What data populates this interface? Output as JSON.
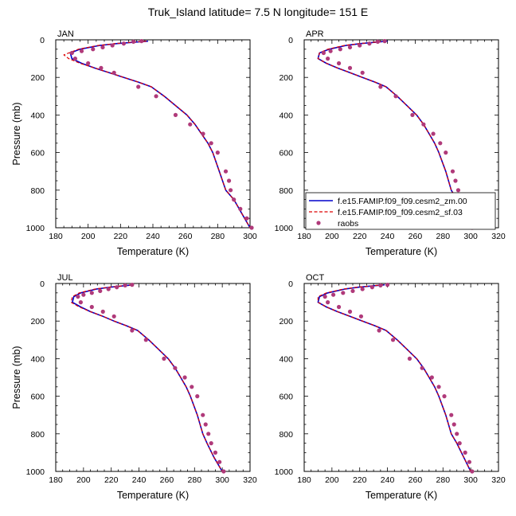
{
  "title": "Truk_Island  latitude= 7.5 N longitude= 151 E",
  "colors": {
    "model_zm": "#0000cc",
    "model_sf": "#dd0000",
    "raobs": "#b03a7a",
    "axis": "#000000"
  },
  "legend": {
    "entries": [
      {
        "key": "model_zm",
        "label": "f.e15.FAMIP.f09_f09.cesm2_zm.00",
        "style": "solid"
      },
      {
        "key": "model_sf",
        "label": "f.e15.FAMIP.f09_f09.cesm2_sf.03",
        "style": "dashed"
      },
      {
        "key": "raobs",
        "label": "raobs",
        "style": "marker"
      }
    ]
  },
  "chart_data": [
    {
      "type": "line",
      "panel": "JAN",
      "xlabel": "Temperature (K)",
      "ylabel": "Pressure (mb)",
      "xlim": [
        180,
        300
      ],
      "ylim": [
        0,
        1000
      ],
      "y_inverted": true,
      "xticks": [
        180,
        200,
        220,
        240,
        260,
        280,
        300
      ],
      "yticks": [
        0,
        200,
        400,
        600,
        800,
        1000
      ],
      "series": [
        {
          "key": "model_zm",
          "name": "f.e15.FAMIP.f09_f09.cesm2_zm.00",
          "x": [
            237,
            228,
            218,
            207,
            195,
            189,
            190,
            196,
            204,
            213,
            222,
            231,
            239,
            247,
            254,
            261,
            266,
            270,
            274,
            277,
            281,
            285,
            290,
            295,
            300
          ],
          "y": [
            7,
            13,
            20,
            30,
            50,
            70,
            100,
            125,
            150,
            175,
            200,
            225,
            250,
            300,
            350,
            400,
            450,
            500,
            550,
            600,
            700,
            800,
            850,
            925,
            1000
          ]
        },
        {
          "key": "model_sf",
          "name": "f.e15.FAMIP.f09_f09.cesm2_sf.03",
          "x": [
            236,
            227,
            217,
            206,
            194,
            185,
            188,
            195,
            204,
            213,
            222,
            231,
            239,
            247,
            254,
            261,
            266,
            270,
            274,
            277,
            281,
            285,
            290,
            295,
            300
          ],
          "y": [
            7,
            13,
            20,
            30,
            50,
            80,
            100,
            125,
            150,
            175,
            200,
            225,
            250,
            300,
            350,
            400,
            450,
            500,
            550,
            600,
            700,
            800,
            850,
            925,
            1000
          ]
        },
        {
          "key": "raobs",
          "name": "raobs",
          "x": [
            233,
            228,
            222,
            215,
            209,
            203,
            196,
            190,
            192,
            200,
            208,
            216,
            231,
            242,
            254,
            263,
            271,
            276,
            280,
            285,
            287,
            288,
            290,
            294,
            298,
            301
          ],
          "y": [
            7,
            10,
            20,
            30,
            40,
            50,
            60,
            70,
            100,
            125,
            150,
            175,
            250,
            300,
            400,
            450,
            500,
            550,
            600,
            700,
            750,
            800,
            850,
            900,
            950,
            1000
          ]
        }
      ]
    },
    {
      "type": "line",
      "panel": "APR",
      "xlabel": "Temperature (K)",
      "ylabel": "",
      "xlim": [
        180,
        320
      ],
      "ylim": [
        0,
        1000
      ],
      "y_inverted": true,
      "xticks": [
        180,
        200,
        220,
        240,
        260,
        280,
        300,
        320
      ],
      "yticks": [
        0,
        200,
        400,
        600,
        800,
        1000
      ],
      "series": [
        {
          "key": "model_zm",
          "name": "f.e15.FAMIP.f09_f09.cesm2_zm.00",
          "x": [
            240,
            231,
            221,
            210,
            198,
            191,
            190,
            196,
            204,
            213,
            222,
            231,
            239,
            247,
            254,
            261,
            266,
            270,
            274,
            277,
            282,
            286,
            290,
            296,
            301
          ],
          "y": [
            7,
            13,
            20,
            30,
            50,
            70,
            100,
            125,
            150,
            175,
            200,
            225,
            250,
            300,
            350,
            400,
            450,
            500,
            550,
            600,
            700,
            800,
            850,
            925,
            1000
          ]
        },
        {
          "key": "model_sf",
          "name": "f.e15.FAMIP.f09_f09.cesm2_sf.03",
          "x": [
            239,
            230,
            220,
            209,
            197,
            191,
            190,
            196,
            204,
            213,
            222,
            231,
            239,
            247,
            254,
            261,
            266,
            270,
            274,
            277,
            282,
            286,
            290,
            296,
            301
          ],
          "y": [
            7,
            13,
            20,
            30,
            50,
            70,
            100,
            125,
            150,
            175,
            200,
            225,
            250,
            300,
            350,
            400,
            450,
            500,
            550,
            600,
            700,
            800,
            850,
            925,
            1000
          ]
        },
        {
          "key": "raobs",
          "name": "raobs",
          "x": [
            238,
            233,
            227,
            220,
            213,
            206,
            199,
            194,
            197,
            205,
            213,
            222,
            235,
            246,
            258,
            266,
            273,
            278,
            282,
            287,
            289,
            291,
            293,
            296,
            299,
            301
          ],
          "y": [
            7,
            10,
            20,
            30,
            40,
            50,
            60,
            70,
            100,
            125,
            150,
            175,
            250,
            300,
            400,
            450,
            500,
            550,
            600,
            700,
            750,
            800,
            850,
            900,
            950,
            1000
          ]
        }
      ]
    },
    {
      "type": "line",
      "panel": "JUL",
      "xlabel": "Temperature (K)",
      "ylabel": "Pressure (mb)",
      "xlim": [
        180,
        320
      ],
      "ylim": [
        0,
        1000
      ],
      "y_inverted": true,
      "xticks": [
        180,
        200,
        220,
        240,
        260,
        280,
        300,
        320
      ],
      "yticks": [
        0,
        200,
        400,
        600,
        800,
        1000
      ],
      "series": [
        {
          "key": "model_zm",
          "name": "f.e15.FAMIP.f09_f09.cesm2_zm.00",
          "x": [
            236,
            228,
            219,
            209,
            198,
            193,
            192,
            198,
            205,
            214,
            222,
            231,
            239,
            247,
            254,
            261,
            266,
            270,
            274,
            277,
            282,
            286,
            289,
            294,
            300
          ],
          "y": [
            7,
            13,
            20,
            30,
            50,
            70,
            100,
            125,
            150,
            175,
            200,
            225,
            250,
            300,
            350,
            400,
            450,
            500,
            550,
            600,
            700,
            800,
            850,
            925,
            1000
          ]
        },
        {
          "key": "model_sf",
          "name": "f.e15.FAMIP.f09_f09.cesm2_sf.03",
          "x": [
            235,
            227,
            218,
            208,
            197,
            192,
            191,
            197,
            205,
            214,
            222,
            231,
            239,
            247,
            254,
            261,
            266,
            270,
            274,
            277,
            282,
            286,
            289,
            294,
            300
          ],
          "y": [
            7,
            13,
            20,
            30,
            50,
            70,
            100,
            125,
            150,
            175,
            200,
            225,
            250,
            300,
            350,
            400,
            450,
            500,
            550,
            600,
            700,
            800,
            850,
            925,
            1000
          ]
        },
        {
          "key": "raobs",
          "name": "raobs",
          "x": [
            235,
            230,
            224,
            218,
            212,
            206,
            200,
            196,
            198,
            206,
            214,
            222,
            235,
            245,
            258,
            266,
            273,
            278,
            282,
            286,
            288,
            290,
            292,
            295,
            298,
            301
          ],
          "y": [
            7,
            10,
            20,
            30,
            40,
            50,
            60,
            70,
            100,
            125,
            150,
            175,
            250,
            300,
            400,
            450,
            500,
            550,
            600,
            700,
            750,
            800,
            850,
            900,
            950,
            1000
          ]
        }
      ]
    },
    {
      "type": "line",
      "panel": "OCT",
      "xlabel": "Temperature (K)",
      "ylabel": "",
      "xlim": [
        180,
        320
      ],
      "ylim": [
        0,
        1000
      ],
      "y_inverted": true,
      "xticks": [
        180,
        200,
        220,
        240,
        260,
        280,
        300,
        320
      ],
      "yticks": [
        0,
        200,
        400,
        600,
        800,
        1000
      ],
      "series": [
        {
          "key": "model_zm",
          "name": "f.e15.FAMIP.f09_f09.cesm2_zm.00",
          "x": [
            238,
            229,
            219,
            209,
            197,
            191,
            190,
            196,
            204,
            213,
            222,
            231,
            239,
            247,
            254,
            261,
            266,
            270,
            274,
            277,
            282,
            286,
            290,
            295,
            300
          ],
          "y": [
            7,
            13,
            20,
            30,
            50,
            70,
            100,
            125,
            150,
            175,
            200,
            225,
            250,
            300,
            350,
            400,
            450,
            500,
            550,
            600,
            700,
            800,
            850,
            925,
            1000
          ]
        },
        {
          "key": "model_sf",
          "name": "f.e15.FAMIP.f09_f09.cesm2_sf.03",
          "x": [
            237,
            228,
            218,
            208,
            196,
            190,
            190,
            196,
            204,
            213,
            222,
            231,
            239,
            247,
            254,
            261,
            266,
            270,
            274,
            277,
            282,
            286,
            290,
            295,
            300
          ],
          "y": [
            7,
            13,
            20,
            30,
            50,
            70,
            100,
            125,
            150,
            175,
            200,
            225,
            250,
            300,
            350,
            400,
            450,
            500,
            550,
            600,
            700,
            800,
            850,
            925,
            1000
          ]
        },
        {
          "key": "raobs",
          "name": "raobs",
          "x": [
            240,
            235,
            229,
            222,
            215,
            208,
            201,
            195,
            197,
            205,
            213,
            221,
            234,
            244,
            256,
            265,
            272,
            277,
            281,
            286,
            288,
            290,
            292,
            296,
            299,
            301
          ],
          "y": [
            7,
            10,
            20,
            30,
            40,
            50,
            60,
            70,
            100,
            125,
            150,
            175,
            250,
            300,
            400,
            450,
            500,
            550,
            600,
            700,
            750,
            800,
            850,
            900,
            950,
            1000
          ]
        }
      ]
    }
  ]
}
